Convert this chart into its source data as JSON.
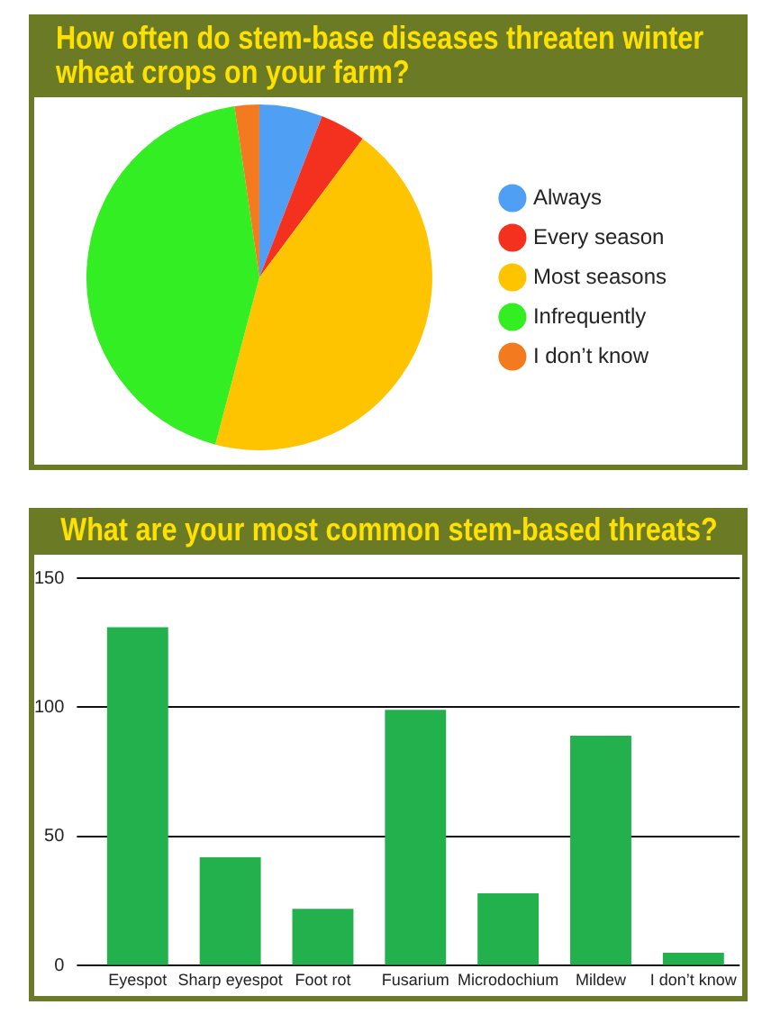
{
  "chart_data": [
    {
      "type": "pie",
      "title": "How often do stem-base diseases threaten winter wheat crops on your farm?",
      "categories": [
        "Always",
        "Every season",
        "Most seasons",
        "Infrequently",
        "I don’t know"
      ],
      "values": [
        5.9,
        4.3,
        43.9,
        43.6,
        2.3
      ],
      "colors": [
        "#4f9ff5",
        "#f4301f",
        "#ffc400",
        "#33ee22",
        "#f47a20"
      ],
      "legend": "right"
    },
    {
      "type": "bar",
      "title": "What are your most common stem-based threats?",
      "categories": [
        "Eyespot",
        "Sharp eyespot",
        "Foot rot",
        "Fusarium",
        "Microdochium",
        "Mildew",
        "I don’t know"
      ],
      "values": [
        131,
        42,
        22,
        99,
        28,
        89,
        5
      ],
      "color": "#22b14c",
      "ylim": [
        0,
        150
      ],
      "yticks": [
        0,
        50,
        100,
        150
      ],
      "grid": "y"
    }
  ]
}
